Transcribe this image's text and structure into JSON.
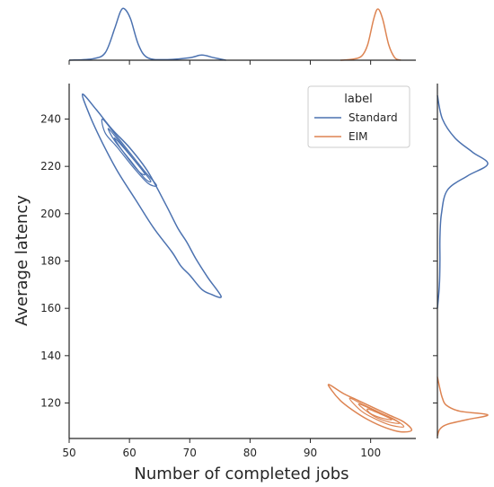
{
  "chart_data": {
    "type": "kde-jointplot",
    "xlabel": "Number of completed jobs",
    "ylabel": "Average latency",
    "xlim": [
      50,
      107.5
    ],
    "ylim": [
      105,
      255
    ],
    "xticks": [
      50,
      60,
      70,
      80,
      90,
      100
    ],
    "yticks": [
      120,
      140,
      160,
      180,
      200,
      220,
      240
    ],
    "legend": {
      "title": "label",
      "placement": "upper right",
      "entries": [
        "Standard",
        "EIM"
      ]
    },
    "series": [
      {
        "name": "Standard",
        "color": "#4c72b0",
        "contour_outer": [
          [
            52.2,
            250.5
          ],
          [
            54.5,
            244
          ],
          [
            57,
            236
          ],
          [
            60,
            228
          ],
          [
            63,
            218
          ],
          [
            66,
            204
          ],
          [
            68,
            194
          ],
          [
            69.5,
            188
          ],
          [
            71,
            181
          ],
          [
            73,
            173
          ],
          [
            75.2,
            165
          ],
          [
            73.5,
            166
          ],
          [
            72,
            168
          ],
          [
            70,
            174
          ],
          [
            68.5,
            178
          ],
          [
            67,
            184
          ],
          [
            64,
            194
          ],
          [
            61,
            206
          ],
          [
            58,
            218
          ],
          [
            55.5,
            230
          ],
          [
            53.5,
            241
          ],
          [
            52.2,
            250.5
          ]
        ],
        "contour_inner": [
          [
            [
              55.5,
              240
            ],
            [
              57.5,
              234
            ],
            [
              60,
              226
            ],
            [
              62.5,
              218
            ],
            [
              64.5,
              212
            ],
            [
              63,
              213
            ],
            [
              60.5,
              220
            ],
            [
              58,
              228
            ],
            [
              56,
              234
            ],
            [
              55.5,
              240
            ]
          ],
          [
            [
              56.5,
              236
            ],
            [
              58.5,
              230
            ],
            [
              61,
              222
            ],
            [
              63.5,
              214
            ],
            [
              62.5,
              215
            ],
            [
              60,
              223
            ],
            [
              57.5,
              231
            ],
            [
              56.5,
              236
            ]
          ],
          [
            [
              57.5,
              232
            ],
            [
              60,
              225
            ],
            [
              62.5,
              217
            ],
            [
              61.5,
              218
            ],
            [
              59,
              226
            ],
            [
              57.5,
              232
            ]
          ]
        ],
        "marginal_x": [
          [
            50,
            0.0
          ],
          [
            54,
            0.03
          ],
          [
            56,
            0.15
          ],
          [
            57.5,
            0.6
          ],
          [
            58.5,
            0.95
          ],
          [
            59.2,
            1.0
          ],
          [
            60.2,
            0.8
          ],
          [
            61.5,
            0.3
          ],
          [
            63,
            0.05
          ],
          [
            66,
            0.01
          ],
          [
            70,
            0.05
          ],
          [
            72,
            0.1
          ],
          [
            74,
            0.05
          ],
          [
            76,
            0.0
          ]
        ],
        "marginal_y": [
          [
            250,
            0.0
          ],
          [
            240,
            0.1
          ],
          [
            232,
            0.35
          ],
          [
            226,
            0.7
          ],
          [
            221,
            1.0
          ],
          [
            216,
            0.6
          ],
          [
            210,
            0.2
          ],
          [
            200,
            0.08
          ],
          [
            190,
            0.05
          ],
          [
            180,
            0.05
          ],
          [
            170,
            0.04
          ],
          [
            160,
            0.0
          ]
        ]
      },
      {
        "name": "EIM",
        "color": "#dd8452",
        "contour_outer": [
          [
            93.1,
            127.8
          ],
          [
            95.5,
            124
          ],
          [
            98,
            121
          ],
          [
            100.5,
            118
          ],
          [
            103,
            115
          ],
          [
            105.5,
            112
          ],
          [
            106.8,
            108.5
          ],
          [
            105,
            107.8
          ],
          [
            102.5,
            109.5
          ],
          [
            99.5,
            113
          ],
          [
            97,
            117
          ],
          [
            95,
            121
          ],
          [
            93.5,
            125.5
          ],
          [
            93.1,
            127.8
          ]
        ],
        "contour_inner": [
          [
            [
              96.5,
              122
            ],
            [
              99,
              119
            ],
            [
              101.5,
              116
            ],
            [
              104,
              113
            ],
            [
              105.5,
              110
            ],
            [
              103.5,
              110.5
            ],
            [
              101,
              113
            ],
            [
              98.5,
              116.5
            ],
            [
              96.5,
              122
            ]
          ],
          [
            [
              98,
              119.5
            ],
            [
              100.5,
              117
            ],
            [
              103,
              114
            ],
            [
              104.8,
              111.5
            ],
            [
              103,
              112
            ],
            [
              100.5,
              114.5
            ],
            [
              98,
              119.5
            ]
          ],
          [
            [
              99.5,
              117.5
            ],
            [
              101.5,
              115.5
            ],
            [
              103.5,
              113
            ],
            [
              102,
              113.5
            ],
            [
              100,
              115.5
            ],
            [
              99.5,
              117.5
            ]
          ]
        ],
        "marginal_x": [
          [
            95,
            0.0
          ],
          [
            97,
            0.02
          ],
          [
            98.5,
            0.08
          ],
          [
            99.5,
            0.3
          ],
          [
            100.5,
            0.8
          ],
          [
            101.2,
            1.0
          ],
          [
            102,
            0.8
          ],
          [
            103,
            0.3
          ],
          [
            104,
            0.05
          ],
          [
            105,
            0.0
          ]
        ],
        "marginal_y": [
          [
            131,
            0.0
          ],
          [
            126,
            0.05
          ],
          [
            122,
            0.1
          ],
          [
            119,
            0.18
          ],
          [
            116.5,
            0.45
          ],
          [
            115,
            1.0
          ],
          [
            113,
            0.6
          ],
          [
            111,
            0.2
          ],
          [
            109,
            0.05
          ],
          [
            106,
            0.0
          ]
        ]
      }
    ]
  }
}
